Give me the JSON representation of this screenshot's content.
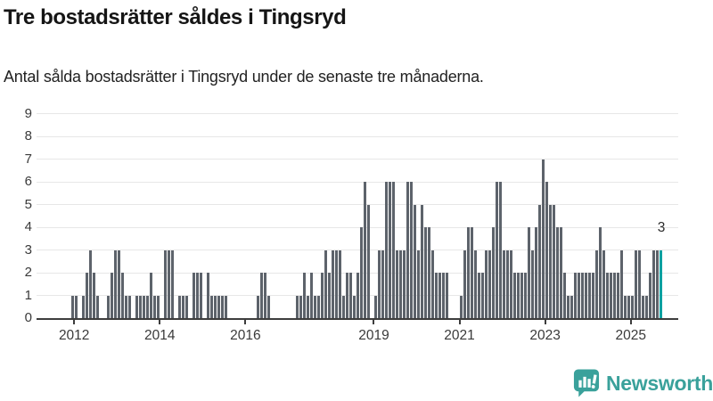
{
  "header": {
    "title": "Tre bostadsrätter såldes i Tingsryd",
    "subtitle": "Antal sålda bostadsrätter i Tingsryd under de senaste tre månaderna."
  },
  "footer": {
    "logo_text": "Newsworthy"
  },
  "chart_data": {
    "type": "bar",
    "title": "Tre bostadsrätter såldes i Tingsryd",
    "subtitle": "Antal sålda bostadsrätter i Tingsryd under de senaste tre månaderna.",
    "ylabel": "",
    "xlabel": "",
    "ylim": [
      0,
      9
    ],
    "y_ticks": [
      0,
      1,
      2,
      3,
      4,
      5,
      6,
      7,
      8,
      9
    ],
    "x_tick_labels": [
      "2012",
      "2014",
      "2016",
      "2019",
      "2021",
      "2023",
      "2025"
    ],
    "grid": true,
    "legend_position": "none",
    "values": [
      1,
      1,
      0,
      1,
      2,
      3,
      2,
      1,
      0,
      0,
      1,
      2,
      3,
      3,
      2,
      1,
      1,
      0,
      1,
      1,
      1,
      1,
      2,
      1,
      1,
      0,
      3,
      3,
      3,
      0,
      1,
      1,
      1,
      0,
      2,
      2,
      2,
      0,
      2,
      1,
      1,
      1,
      1,
      1,
      0,
      0,
      0,
      0,
      0,
      0,
      0,
      0,
      1,
      2,
      2,
      1,
      0,
      0,
      0,
      0,
      0,
      0,
      0,
      1,
      1,
      2,
      1,
      2,
      1,
      1,
      2,
      3,
      2,
      3,
      3,
      3,
      1,
      2,
      2,
      1,
      2,
      4,
      6,
      5,
      0,
      1,
      3,
      3,
      6,
      6,
      6,
      3,
      3,
      3,
      6,
      6,
      5,
      3,
      5,
      4,
      4,
      3,
      2,
      2,
      2,
      2,
      0,
      0,
      0,
      1,
      3,
      4,
      4,
      3,
      2,
      2,
      3,
      3,
      4,
      6,
      6,
      3,
      3,
      3,
      2,
      2,
      2,
      2,
      4,
      3,
      4,
      5,
      7,
      6,
      5,
      5,
      4,
      4,
      2,
      1,
      1,
      2,
      2,
      2,
      2,
      2,
      2,
      3,
      4,
      3,
      2,
      2,
      2,
      2,
      3,
      1,
      1,
      1,
      3,
      3,
      1,
      1,
      2,
      3,
      3,
      3
    ],
    "highlight_last_bar": true,
    "highlight_label": "3",
    "bar_color": "#5d636b",
    "highlight_color": "#00a1a1",
    "grid_color": "#e7e7e7",
    "axis_color": "#3d3d3d"
  }
}
